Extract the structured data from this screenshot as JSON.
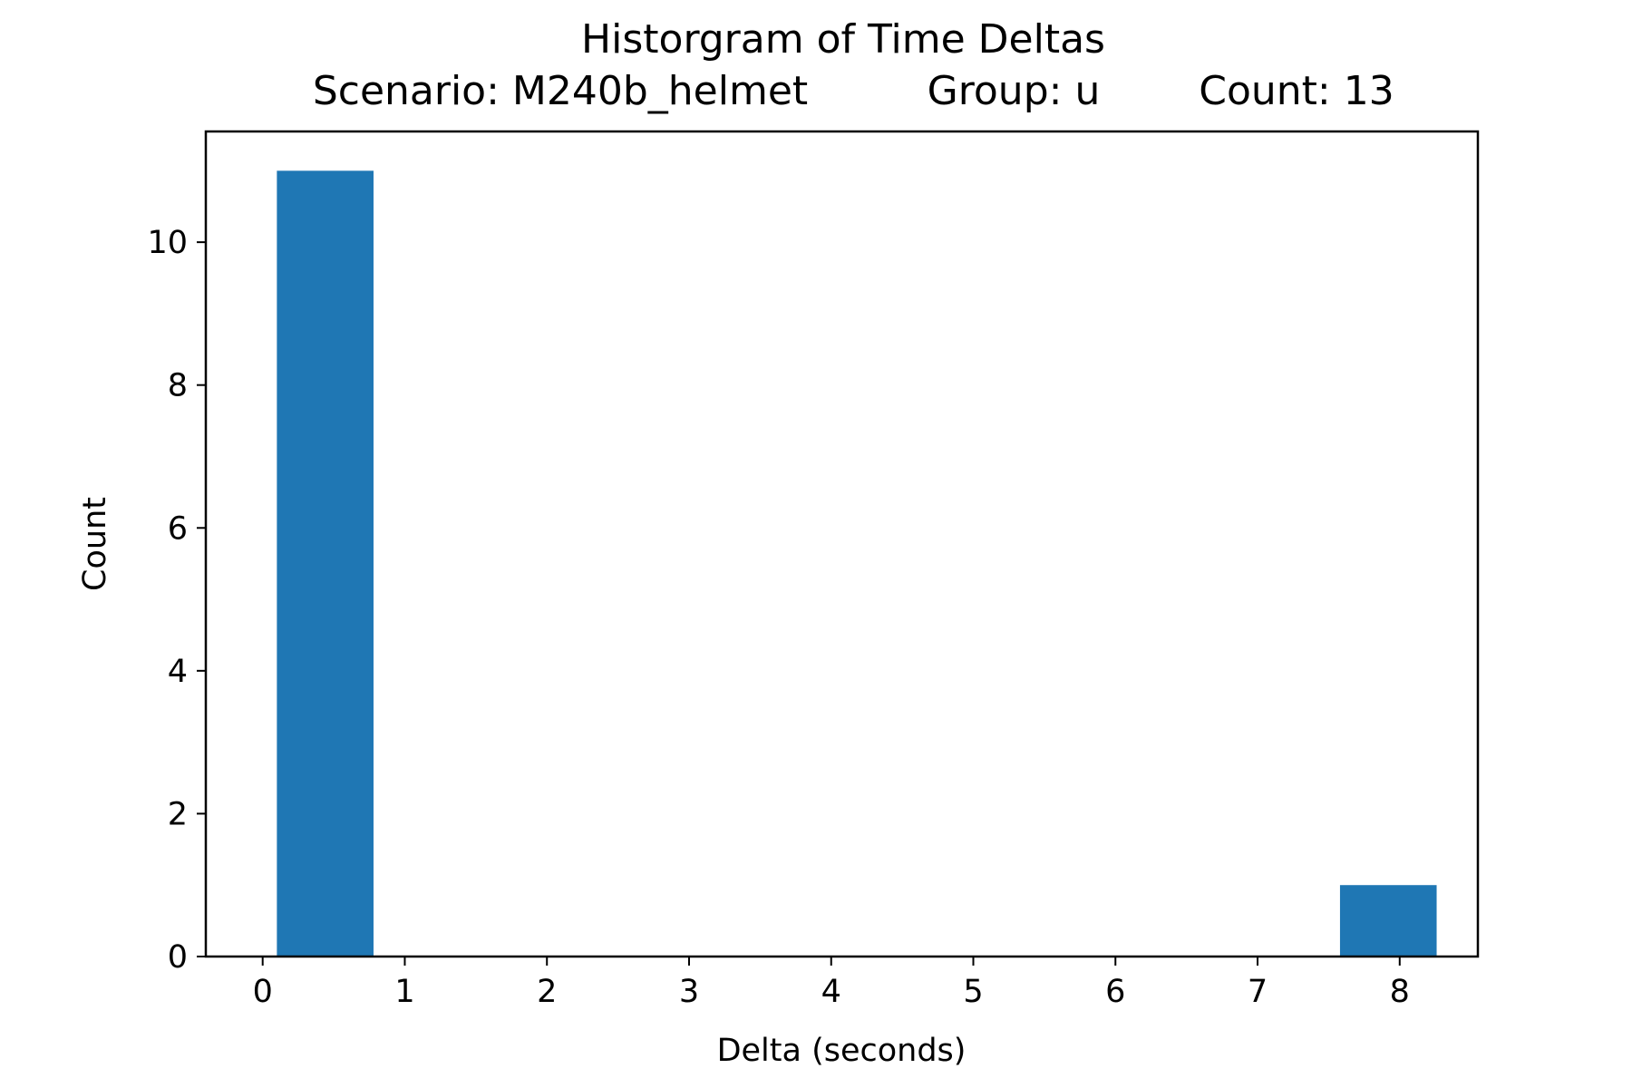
{
  "chart_data": {
    "type": "bar",
    "title": "Historgram of Time Deltas",
    "subtitle": {
      "scenario": "Scenario: M240b_helmet",
      "group": "Group: u",
      "count": "Count: 13"
    },
    "xlabel": "Delta (seconds)",
    "ylabel": "Count",
    "xlim": [
      -0.4,
      8.55
    ],
    "ylim": [
      0,
      11.55
    ],
    "xticks": [
      0,
      1,
      2,
      3,
      4,
      5,
      6,
      7,
      8
    ],
    "yticks": [
      0,
      2,
      4,
      6,
      8,
      10
    ],
    "bins": [
      {
        "start": 0.1,
        "end": 0.78,
        "count": 11
      },
      {
        "start": 0.78,
        "end": 1.46,
        "count": 0
      },
      {
        "start": 1.46,
        "end": 2.14,
        "count": 0
      },
      {
        "start": 2.14,
        "end": 2.82,
        "count": 0
      },
      {
        "start": 2.82,
        "end": 3.5,
        "count": 0
      },
      {
        "start": 3.5,
        "end": 4.18,
        "count": 0
      },
      {
        "start": 4.18,
        "end": 4.86,
        "count": 0
      },
      {
        "start": 4.86,
        "end": 5.54,
        "count": 0
      },
      {
        "start": 5.54,
        "end": 6.22,
        "count": 0
      },
      {
        "start": 6.22,
        "end": 6.9,
        "count": 0
      },
      {
        "start": 6.9,
        "end": 7.58,
        "count": 0
      },
      {
        "start": 7.58,
        "end": 8.26,
        "count": 1
      }
    ],
    "bar_color": "#1f77b4",
    "grid": false,
    "legend": "none"
  }
}
